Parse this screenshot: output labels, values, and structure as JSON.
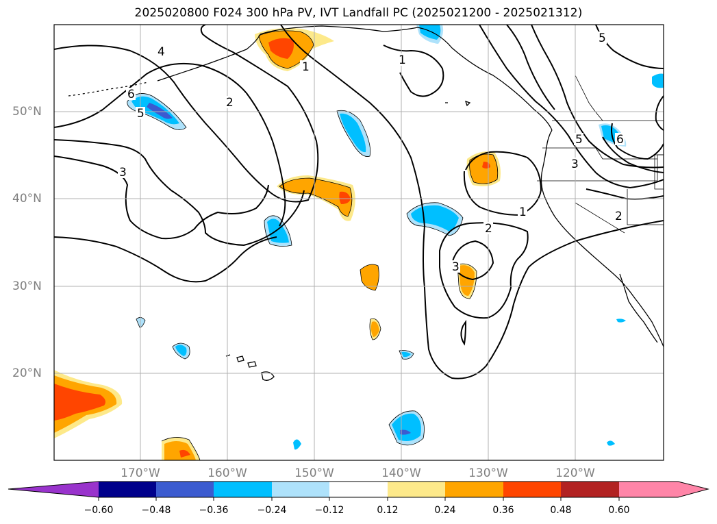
{
  "title": "2025020800 F024 300 hPa PV, IVT Landfall PC (2025021200 - 2025021312)",
  "map": {
    "lat_labels": [
      "50°N",
      "40°N",
      "30°N",
      "20°N"
    ],
    "lon_labels": [
      "170°W",
      "160°W",
      "150°W",
      "140°W",
      "130°W",
      "120°W"
    ],
    "contour_labels": [
      "1",
      "1",
      "1",
      "2",
      "2",
      "2",
      "3",
      "3",
      "3",
      "4",
      "5",
      "5",
      "5",
      "6",
      "6"
    ],
    "colors": {
      "grid": "#b0b0b0",
      "contour": "#000000",
      "pos_light": "#fde98a",
      "pos_mid": "#ffa500",
      "pos_strong": "#ff4500",
      "pos_max": "#b22222",
      "neg_light": "#aee2fb",
      "neg_mid": "#00bfff",
      "neg_strong": "#3b5bd0",
      "neg_max": "#00008b"
    }
  },
  "colorbar": {
    "ticks": [
      "−0.60",
      "−0.48",
      "−0.36",
      "−0.24",
      "−0.12",
      "0.12",
      "0.24",
      "0.36",
      "0.48",
      "0.60"
    ],
    "colors": [
      "#9933cc",
      "#00008b",
      "#3b5bd0",
      "#00bfff",
      "#aee2fb",
      "#ffffff",
      "#fde98a",
      "#ffa500",
      "#ff4500",
      "#b22222",
      "#ff85a8"
    ]
  }
}
